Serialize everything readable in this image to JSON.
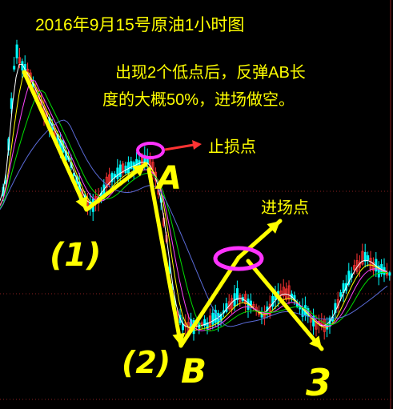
{
  "title": "2016年9月15号原油1小时图",
  "note_line1": "出现2个低点后，反弹AB长",
  "note_line2": "度的大概50%，进场做空。",
  "stop_label": "止损点",
  "entry_label": "进场点",
  "marks": {
    "A": "A",
    "B": "B",
    "one": "(1)",
    "two": "(2)",
    "three": "3"
  },
  "colors": {
    "background": "#000000",
    "candle_up": "#ff3333",
    "candle_down": "#00ffff",
    "ma_white": "#ffffff",
    "ma_yellow": "#ffff00",
    "ma_purple": "#ff44ff",
    "ma_green": "#00dd00",
    "ma_blue": "#5a6bd8",
    "annotation": "#ffff00",
    "circle": "#ff33ff",
    "stop_arrow": "#ff3333",
    "title_text": "#ffff00",
    "note_text": "#ffff00",
    "label_text": "#ffff00"
  },
  "chart_data": {
    "type": "candlestick",
    "title": "2016年9月15号原油1小时图",
    "xlabel": "",
    "ylabel": "",
    "points": [
      {
        "label": "(1)",
        "role": "first low"
      },
      {
        "label": "A",
        "role": "rebound high / stop loss"
      },
      {
        "label": "(2)",
        "role": "second low"
      },
      {
        "label": "B",
        "role": "second low"
      },
      {
        "label": "进场点",
        "role": "entry, ~50% retracement of AB"
      },
      {
        "label": "3",
        "role": "target after short entry"
      }
    ]
  }
}
